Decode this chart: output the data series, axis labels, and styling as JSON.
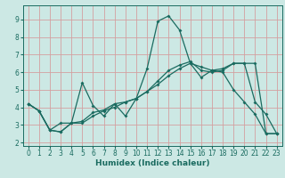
{
  "xlabel": "Humidex (Indice chaleur)",
  "bg_color": "#cce8e4",
  "grid_color": "#d4a0a0",
  "line_color": "#1a6b60",
  "xlim": [
    -0.5,
    23.5
  ],
  "ylim": [
    1.8,
    9.8
  ],
  "xticks": [
    0,
    1,
    2,
    3,
    4,
    5,
    6,
    7,
    8,
    9,
    10,
    11,
    12,
    13,
    14,
    15,
    16,
    17,
    18,
    19,
    20,
    21,
    22,
    23
  ],
  "yticks": [
    2,
    3,
    4,
    5,
    6,
    7,
    8,
    9
  ],
  "series1_x": [
    0,
    1,
    2,
    3,
    4,
    5,
    6,
    7,
    8,
    9,
    10,
    11,
    12,
    13,
    14,
    15,
    16,
    17,
    18,
    19,
    20,
    21,
    22,
    23
  ],
  "series1_y": [
    4.2,
    3.8,
    2.7,
    2.6,
    3.1,
    5.4,
    4.1,
    3.5,
    4.2,
    3.5,
    4.5,
    6.2,
    8.9,
    9.2,
    8.4,
    6.5,
    5.7,
    6.1,
    6.0,
    5.0,
    4.3,
    3.6,
    2.5,
    2.5
  ],
  "series2_x": [
    0,
    1,
    2,
    3,
    4,
    5,
    6,
    7,
    8,
    9,
    10,
    11,
    12,
    13,
    14,
    15,
    16,
    17,
    18,
    19,
    20,
    21,
    22,
    23
  ],
  "series2_y": [
    4.2,
    3.8,
    2.7,
    2.6,
    3.1,
    3.2,
    3.7,
    3.85,
    4.2,
    4.3,
    4.5,
    4.9,
    5.5,
    6.1,
    6.4,
    6.6,
    6.1,
    6.0,
    6.1,
    6.5,
    6.5,
    4.3,
    3.6,
    2.5
  ],
  "series3_x": [
    0,
    1,
    2,
    3,
    4,
    5,
    6,
    7,
    8,
    9,
    10,
    11,
    12,
    13,
    14,
    15,
    16,
    17,
    18,
    19,
    20,
    21,
    22,
    23
  ],
  "series3_y": [
    4.2,
    3.8,
    2.7,
    3.1,
    3.1,
    3.1,
    3.5,
    3.8,
    4.0,
    4.3,
    4.5,
    4.9,
    5.3,
    5.8,
    6.2,
    6.5,
    6.3,
    6.1,
    6.2,
    6.5,
    6.5,
    6.5,
    2.5,
    2.5
  ]
}
